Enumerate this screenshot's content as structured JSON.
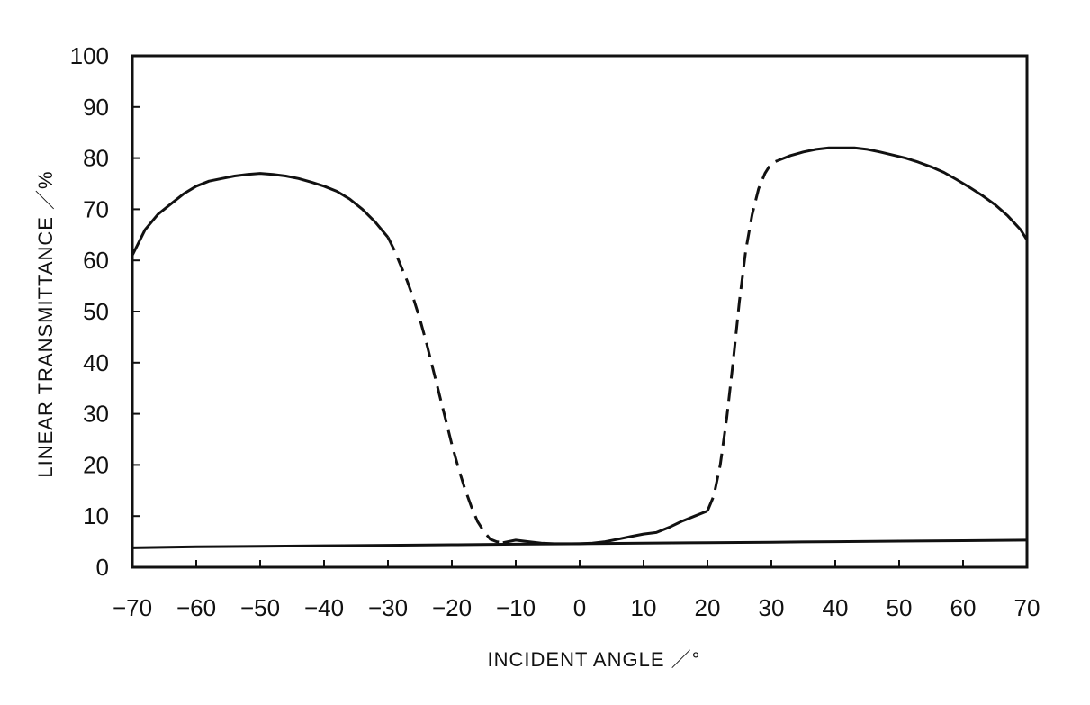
{
  "chart_data": {
    "type": "line",
    "xlabel": "INCIDENT ANGLE ／°",
    "ylabel": "LINEAR TRANSMITTANCE ／%",
    "xlim": [
      -70,
      70
    ],
    "ylim": [
      0,
      100
    ],
    "x_ticks": [
      -70,
      -60,
      -50,
      -40,
      -30,
      -20,
      -10,
      0,
      10,
      20,
      30,
      40,
      50,
      60,
      70
    ],
    "y_ticks": [
      0,
      10,
      20,
      30,
      40,
      50,
      60,
      70,
      80,
      90,
      100
    ],
    "x_tick_labels": [
      "−70",
      "−60",
      "−50",
      "−40",
      "−30",
      "−20",
      "−10",
      "0",
      "10",
      "20",
      "30",
      "40",
      "50",
      "60",
      "70"
    ],
    "y_tick_labels": [
      "0",
      "10",
      "20",
      "30",
      "40",
      "50",
      "60",
      "70",
      "80",
      "90",
      "100"
    ],
    "grid": false,
    "legend": "none",
    "series": [
      {
        "style": "solid",
        "x": [
          -70,
          -68,
          -66,
          -64,
          -62,
          -60,
          -58,
          -56,
          -54,
          -52,
          -50,
          -48,
          -46,
          -44,
          -42,
          -40,
          -38,
          -36,
          -34,
          -32,
          -30
        ],
        "y": [
          61,
          66,
          69,
          71,
          73,
          74.5,
          75.5,
          76,
          76.5,
          76.8,
          77,
          76.8,
          76.5,
          76,
          75.3,
          74.5,
          73.5,
          72,
          70,
          67.5,
          64.5
        ]
      },
      {
        "style": "dashed",
        "x": [
          -30,
          -29,
          -28,
          -27,
          -26,
          -25,
          -24,
          -23,
          -22,
          -21,
          -20,
          -19,
          -18,
          -17,
          -16,
          -15,
          -14,
          -13,
          -12
        ],
        "y": [
          64.5,
          62,
          59,
          56,
          52.5,
          48.5,
          44,
          39,
          34,
          29,
          24,
          19.5,
          15.5,
          12,
          9,
          7,
          5.5,
          5,
          4.8
        ]
      },
      {
        "style": "solid",
        "x": [
          -12,
          -10,
          -8,
          -6,
          -4,
          -2,
          0,
          2,
          4,
          6,
          8,
          10,
          12,
          14,
          16,
          18,
          20
        ],
        "y": [
          4.8,
          5.3,
          5,
          4.7,
          4.6,
          4.6,
          4.6,
          4.7,
          5,
          5.5,
          6,
          6.5,
          6.8,
          7.8,
          9,
          10,
          11
        ]
      },
      {
        "style": "dashed",
        "x": [
          20,
          21,
          22,
          23,
          24,
          25,
          26,
          27,
          28,
          29,
          30,
          31
        ],
        "y": [
          11,
          14,
          20,
          29,
          40,
          52,
          62,
          69,
          74,
          77,
          79,
          79.5
        ]
      },
      {
        "style": "solid",
        "x": [
          31,
          33,
          35,
          37,
          39,
          41,
          43,
          45,
          47,
          49,
          51,
          53,
          55,
          57,
          59,
          61,
          63,
          65,
          67,
          69,
          70
        ],
        "y": [
          79.5,
          80.5,
          81.2,
          81.7,
          82,
          82,
          82,
          81.7,
          81.2,
          80.6,
          80,
          79.2,
          78.3,
          77.2,
          75.8,
          74.3,
          72.7,
          70.9,
          68.7,
          66,
          64
        ]
      },
      {
        "style": "solid",
        "x": [
          -70,
          -60,
          -50,
          -40,
          -30,
          -20,
          -10,
          0,
          10,
          20,
          30,
          40,
          50,
          60,
          70
        ],
        "y": [
          3.8,
          4,
          4.1,
          4.2,
          4.3,
          4.4,
          4.5,
          4.6,
          4.7,
          4.8,
          4.9,
          5,
          5.1,
          5.2,
          5.3
        ]
      }
    ]
  }
}
